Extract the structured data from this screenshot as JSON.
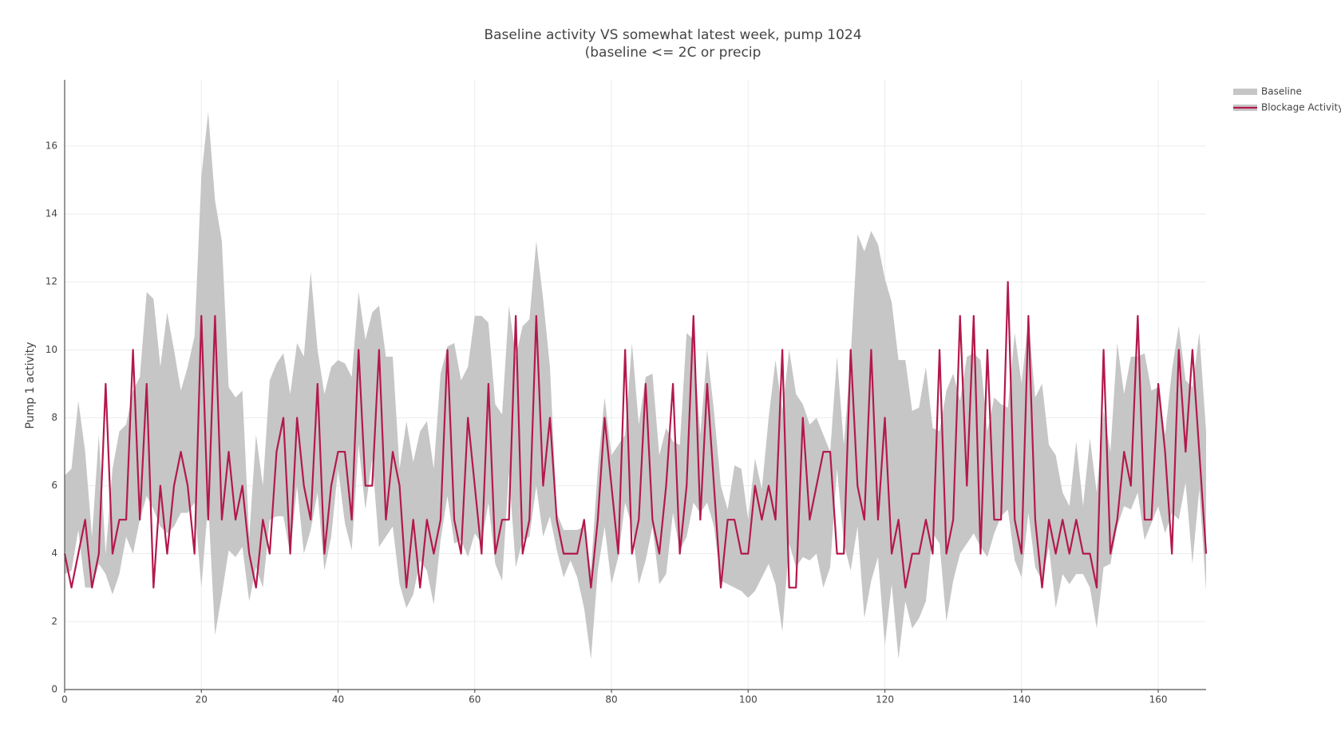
{
  "chart_data": {
    "type": "band-line",
    "title": "Baseline activity VS somewhat latest week, pump 1024",
    "subtitle": "(baseline <= 2C or precip",
    "y_label": "Pump 1 activity",
    "x": [
      0,
      1,
      2,
      3,
      4,
      5,
      6,
      7,
      8,
      9,
      10,
      11,
      12,
      13,
      14,
      15,
      16,
      17,
      18,
      19,
      20,
      21,
      22,
      23,
      24,
      25,
      26,
      27,
      28,
      29,
      30,
      31,
      32,
      33,
      34,
      35,
      36,
      37,
      38,
      39,
      40,
      41,
      42,
      43,
      44,
      45,
      46,
      47,
      48,
      49,
      50,
      51,
      52,
      53,
      54,
      55,
      56,
      57,
      58,
      59,
      60,
      61,
      62,
      63,
      64,
      65,
      66,
      67,
      68,
      69,
      70,
      71,
      72,
      73,
      74,
      75,
      76,
      77,
      78,
      79,
      80,
      81,
      82,
      83,
      84,
      85,
      86,
      87,
      88,
      89,
      90,
      91,
      92,
      93,
      94,
      95,
      96,
      97,
      98,
      99,
      100,
      101,
      102,
      103,
      104,
      105,
      106,
      107,
      108,
      109,
      110,
      111,
      112,
      113,
      114,
      115,
      116,
      117,
      118,
      119,
      120,
      121,
      122,
      123,
      124,
      125,
      126,
      127,
      128,
      129,
      130,
      131,
      132,
      133,
      134,
      135,
      136,
      137,
      138,
      139,
      140,
      141,
      142,
      143,
      144,
      145,
      146,
      147,
      148,
      149,
      150,
      151,
      152,
      153,
      154,
      155,
      156,
      157,
      158,
      159,
      160,
      161,
      162,
      163,
      164,
      165,
      166,
      167
    ],
    "series": [
      {
        "name": "Baseline",
        "color": "#c6c6c6",
        "upper": [
          6.3,
          6.5,
          8.5,
          7,
          4.5,
          7.5,
          4,
          6.5,
          7.6,
          7.8,
          8.8,
          9.2,
          11.7,
          11.5,
          9.5,
          11.1,
          10,
          8.8,
          9.5,
          10.4,
          15.1,
          17,
          14.4,
          13.2,
          8.9,
          8.6,
          8.8,
          4.5,
          7.5,
          6,
          9.1,
          9.6,
          9.9,
          8.7,
          10.2,
          9.8,
          12.3,
          10,
          8.7,
          9.5,
          9.7,
          9.6,
          9.2,
          11.7,
          10.3,
          11.1,
          11.3,
          9.8,
          9.8,
          6.5,
          7.9,
          6.7,
          7.6,
          7.9,
          6.5,
          9.3,
          10.1,
          10.2,
          9.1,
          9.5,
          11,
          11,
          10.8,
          8.4,
          8.1,
          11.3,
          9.8,
          10.7,
          10.9,
          13.2,
          11.5,
          9.5,
          5.2,
          4.7,
          4.7,
          4.7,
          4.8,
          3.5,
          6.5,
          8.6,
          6.9,
          7.2,
          7.5,
          10.2,
          7.8,
          9.2,
          9.3,
          6.9,
          7.7,
          7.3,
          7.2,
          10.5,
          10.3,
          7.5,
          10,
          8.2,
          6,
          5.3,
          6.6,
          6.5,
          5,
          6.8,
          5.9,
          8,
          9.7,
          8.2,
          10,
          8.7,
          8.4,
          7.8,
          8,
          7.5,
          7,
          9.8,
          7.2,
          9.8,
          13.4,
          12.9,
          13.5,
          13.1,
          12.1,
          11.4,
          9.7,
          9.7,
          8.2,
          8.3,
          9.5,
          7.7,
          7.6,
          8.8,
          9.3,
          8.5,
          9.8,
          9.9,
          9.7,
          7.6,
          8.6,
          8.4,
          8.3,
          10.5,
          9,
          10.9,
          8.6,
          9,
          7.2,
          6.9,
          5.8,
          5.4,
          7.3,
          5.4,
          7.4,
          5.8,
          8.2,
          7,
          10.2,
          8.7,
          9.8,
          9.8,
          9.9,
          8.8,
          8.9,
          7.5,
          9.4,
          10.7,
          9.1,
          8.9,
          10.5,
          7.6
        ],
        "lower": [
          3.4,
          3.5,
          4.7,
          3,
          3,
          3.7,
          3.4,
          2.8,
          3.4,
          4.5,
          4,
          5,
          5.7,
          5.3,
          4.8,
          4.6,
          4.8,
          5.2,
          5.2,
          5.5,
          3,
          5.5,
          1.6,
          2.8,
          4.1,
          3.9,
          4.2,
          2.6,
          3.6,
          3,
          5,
          5.1,
          5.1,
          4,
          6,
          4,
          4.7,
          5.8,
          3.5,
          4.5,
          6.5,
          4.9,
          4.1,
          7.2,
          5.3,
          6.8,
          4.2,
          4.5,
          4.8,
          3.1,
          2.4,
          2.8,
          3.8,
          3.5,
          2.5,
          4.4,
          5.7,
          4.3,
          4.4,
          3.9,
          4.6,
          4.3,
          5.5,
          3.7,
          3.2,
          6.4,
          3.6,
          4.4,
          4.5,
          6,
          4.5,
          5.1,
          4.1,
          3.3,
          3.8,
          3.3,
          2.4,
          0.9,
          3.5,
          4.8,
          3.1,
          3.9,
          5.5,
          4.8,
          3.1,
          3.8,
          4.8,
          3.1,
          3.4,
          5.2,
          4.1,
          4.5,
          5.5,
          5.2,
          5.5,
          4.8,
          3.2,
          3.1,
          3,
          2.9,
          2.7,
          2.9,
          3.3,
          3.7,
          3.1,
          1.7,
          4.3,
          3.6,
          3.9,
          3.8,
          4,
          3,
          3.6,
          6.5,
          4.3,
          3.5,
          4.8,
          2.1,
          3.2,
          3.9,
          1.3,
          3.1,
          0.9,
          2.6,
          1.8,
          2.1,
          2.6,
          4.6,
          4.3,
          2,
          3.2,
          4,
          4.3,
          4.6,
          4.2,
          3.9,
          4.6,
          5.1,
          5.3,
          3.8,
          3.3,
          5.2,
          3.6,
          3.2,
          4.2,
          2.4,
          3.4,
          3.1,
          3.4,
          3.4,
          3,
          1.8,
          3.6,
          3.7,
          4.8,
          5.4,
          5.3,
          5.8,
          4.4,
          4.9,
          5.4,
          4.6,
          5.2,
          5,
          6.1,
          3.7,
          5.9,
          2.9
        ]
      },
      {
        "name": "Blockage Activity",
        "color": "#b3194a",
        "values": [
          4,
          3,
          4,
          5,
          3,
          4,
          9,
          4,
          5,
          5,
          10,
          5,
          9,
          3,
          6,
          4,
          6,
          7,
          6,
          4,
          11,
          5,
          11,
          5,
          7,
          5,
          6,
          4,
          3,
          5,
          4,
          7,
          8,
          4,
          8,
          6,
          5,
          9,
          4,
          6,
          7,
          7,
          5,
          10,
          6,
          6,
          10,
          5,
          7,
          6,
          3,
          5,
          3,
          5,
          4,
          5,
          10,
          5,
          4,
          8,
          6,
          4,
          9,
          4,
          5,
          5,
          11,
          4,
          5,
          11,
          6,
          8,
          5,
          4,
          4,
          4,
          5,
          3,
          5,
          8,
          6,
          4,
          10,
          4,
          5,
          9,
          5,
          4,
          6,
          9,
          4,
          6,
          11,
          5,
          9,
          6,
          3,
          5,
          5,
          4,
          4,
          6,
          5,
          6,
          5,
          10,
          3,
          3,
          8,
          5,
          6,
          7,
          7,
          4,
          4,
          10,
          6,
          5,
          10,
          5,
          8,
          4,
          5,
          3,
          4,
          4,
          5,
          4,
          10,
          4,
          5,
          11,
          6,
          11,
          4,
          10,
          5,
          5,
          12,
          5,
          4,
          11,
          5,
          3,
          5,
          4,
          5,
          4,
          5,
          4,
          4,
          3,
          10,
          4,
          5,
          7,
          6,
          11,
          5,
          5,
          9,
          7,
          4,
          10,
          7,
          10,
          7,
          4
        ]
      }
    ],
    "xlim": [
      0,
      167
    ],
    "ylim": [
      0,
      17.95
    ],
    "xticks": [
      0,
      20,
      40,
      60,
      80,
      100,
      120,
      140,
      160
    ],
    "yticks": [
      0,
      2,
      4,
      6,
      8,
      10,
      12,
      14,
      16
    ],
    "grid": true,
    "legend": "top-right"
  }
}
